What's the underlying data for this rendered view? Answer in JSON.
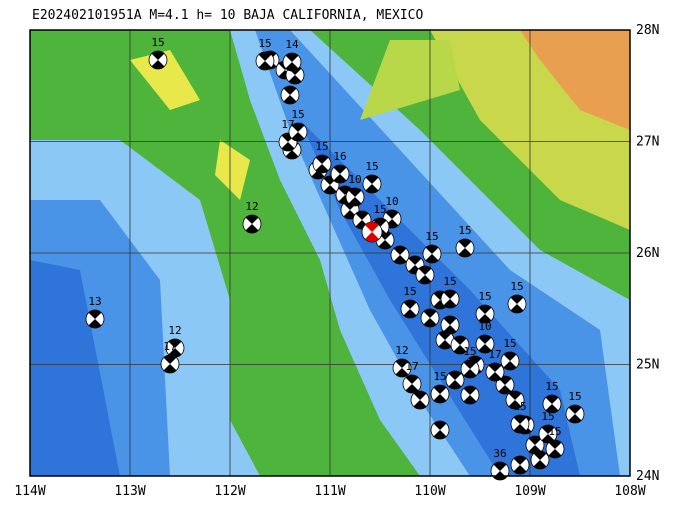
{
  "header": {
    "title": "E202402101951A M=4.1 h= 10 BAJA CALIFORNIA, MEXICO"
  },
  "map": {
    "lat_labels": [
      "28N",
      "27N",
      "26N",
      "25N",
      "24N"
    ],
    "lon_labels": [
      "114W",
      "113W",
      "112W",
      "111W",
      "110W",
      "109W",
      "108W"
    ],
    "events": [
      {
        "label": "15"
      },
      {
        "label": "15"
      },
      {
        "label": "14"
      },
      {
        "label": "17"
      },
      {
        "label": "15"
      },
      {
        "label": "15"
      },
      {
        "label": "16"
      },
      {
        "label": "15"
      },
      {
        "label": "10"
      },
      {
        "label": "10"
      },
      {
        "label": "15"
      },
      {
        "label": "15"
      },
      {
        "label": "15"
      },
      {
        "label": "12"
      },
      {
        "label": "13"
      },
      {
        "label": "12"
      },
      {
        "label": "17"
      },
      {
        "label": "15"
      },
      {
        "label": "15"
      },
      {
        "label": "15"
      },
      {
        "label": "15"
      },
      {
        "label": "10"
      },
      {
        "label": "12"
      },
      {
        "label": "17"
      },
      {
        "label": "15"
      },
      {
        "label": "15"
      },
      {
        "label": "17"
      },
      {
        "label": "15"
      },
      {
        "label": "15"
      },
      {
        "label": "15"
      },
      {
        "label": "36"
      },
      {
        "label": "15"
      },
      {
        "label": "15"
      },
      {
        "label": "15"
      }
    ]
  }
}
